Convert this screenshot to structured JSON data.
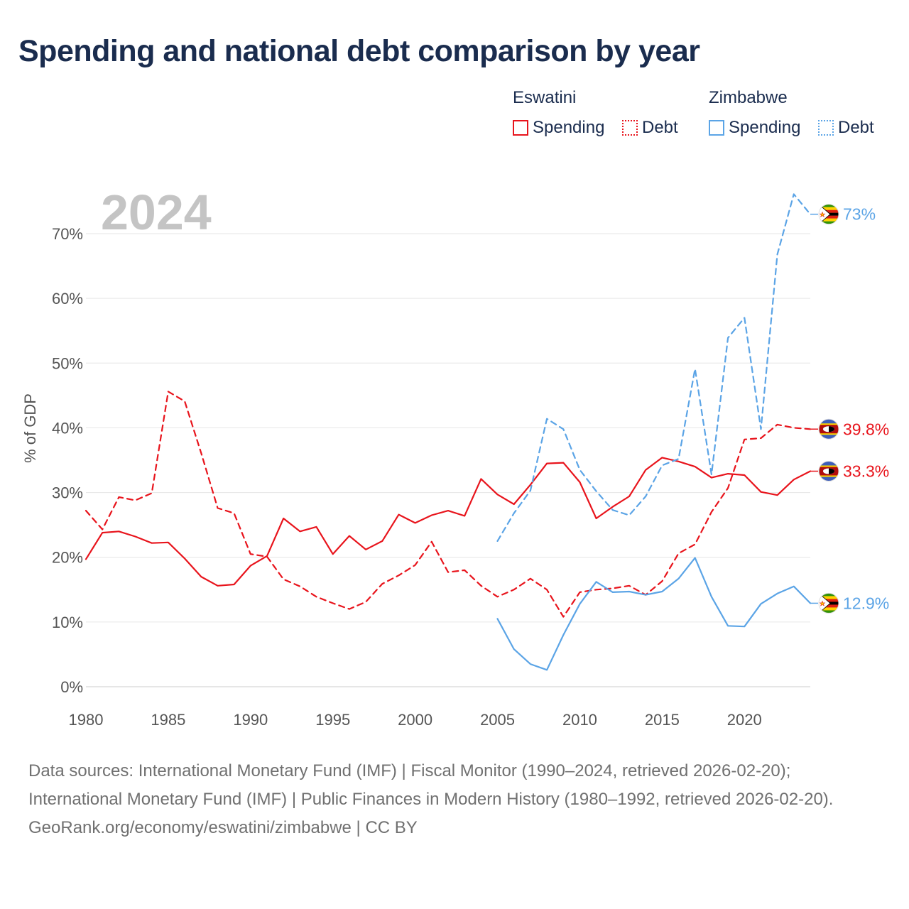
{
  "title": "Spending and national debt comparison by year",
  "legend": {
    "groups": [
      {
        "country": "Eswatini",
        "color": "#e8141c",
        "items": [
          {
            "label": "Spending",
            "style": "solid"
          },
          {
            "label": "Debt",
            "style": "dotted"
          }
        ]
      },
      {
        "country": "Zimbabwe",
        "color": "#5ba4e6",
        "items": [
          {
            "label": "Spending",
            "style": "solid"
          },
          {
            "label": "Debt",
            "style": "dotted"
          }
        ]
      }
    ]
  },
  "chart_data": {
    "type": "line",
    "year_label": "2024",
    "ylabel": "% of GDP",
    "xlim": [
      1980,
      2024
    ],
    "ylim": [
      0,
      70
    ],
    "x_ticks": [
      "1980",
      "1985",
      "1990",
      "1995",
      "2000",
      "2005",
      "2010",
      "2015",
      "2020"
    ],
    "y_ticks": [
      "0%",
      "10%",
      "20%",
      "30%",
      "40%",
      "50%",
      "60%",
      "70%"
    ],
    "series": [
      {
        "name": "Eswatini Spending",
        "country": "Eswatini",
        "kind": "spending",
        "color": "#e8141c",
        "dash": "solid",
        "end_label": "33.3%",
        "x": [
          1980,
          1981,
          1982,
          1983,
          1984,
          1985,
          1986,
          1987,
          1988,
          1989,
          1990,
          1991,
          1992,
          1993,
          1994,
          1995,
          1996,
          1997,
          1998,
          1999,
          2000,
          2001,
          2002,
          2003,
          2004,
          2005,
          2006,
          2007,
          2008,
          2009,
          2010,
          2011,
          2012,
          2013,
          2014,
          2015,
          2016,
          2017,
          2018,
          2019,
          2020,
          2021,
          2022,
          2023,
          2024
        ],
        "values": [
          19.7,
          23.8,
          24.0,
          23.2,
          22.2,
          22.3,
          19.8,
          17.0,
          15.6,
          15.8,
          18.7,
          20.2,
          26.0,
          24.0,
          24.7,
          20.5,
          23.3,
          21.2,
          22.5,
          26.6,
          25.3,
          26.5,
          27.2,
          26.4,
          32.1,
          29.7,
          28.2,
          31.2,
          34.5,
          34.6,
          31.6,
          26.0,
          27.8,
          29.4,
          33.5,
          35.4,
          34.8,
          34.0,
          32.3,
          32.9,
          32.7,
          30.1,
          29.6,
          32.0,
          33.3
        ]
      },
      {
        "name": "Eswatini Debt",
        "country": "Eswatini",
        "kind": "debt",
        "color": "#e8141c",
        "dash": "dashed",
        "end_label": "39.8%",
        "x": [
          1980,
          1981,
          1982,
          1983,
          1984,
          1985,
          1986,
          1987,
          1988,
          1989,
          1990,
          1991,
          1992,
          1993,
          1994,
          1995,
          1996,
          1997,
          1998,
          1999,
          2000,
          2001,
          2002,
          2003,
          2004,
          2005,
          2006,
          2007,
          2008,
          2009,
          2010,
          2011,
          2012,
          2013,
          2014,
          2015,
          2016,
          2017,
          2018,
          2019,
          2020,
          2021,
          2022,
          2023,
          2024
        ],
        "values": [
          27.2,
          24.3,
          29.3,
          28.8,
          29.9,
          45.6,
          44.1,
          36.1,
          27.6,
          26.8,
          20.5,
          20.1,
          16.6,
          15.5,
          13.9,
          12.9,
          12.0,
          13.1,
          15.9,
          17.2,
          18.8,
          22.4,
          17.7,
          18.0,
          15.6,
          13.9,
          15.0,
          16.7,
          15.0,
          10.8,
          14.6,
          15.0,
          15.2,
          15.6,
          14.2,
          16.3,
          20.6,
          22.0,
          27.0,
          30.7,
          38.2,
          38.4,
          40.5,
          40.0,
          39.8
        ]
      },
      {
        "name": "Zimbabwe Spending",
        "country": "Zimbabwe",
        "kind": "spending",
        "color": "#5ba4e6",
        "dash": "solid",
        "end_label": "12.9%",
        "x": [
          2005,
          2006,
          2007,
          2008,
          2009,
          2010,
          2011,
          2012,
          2013,
          2014,
          2015,
          2016,
          2017,
          2018,
          2019,
          2020,
          2021,
          2022,
          2023,
          2024
        ],
        "values": [
          10.5,
          5.8,
          3.5,
          2.6,
          8.0,
          12.8,
          16.2,
          14.6,
          14.7,
          14.2,
          14.7,
          16.7,
          19.9,
          13.9,
          9.4,
          9.3,
          12.8,
          14.4,
          15.5,
          12.9
        ]
      },
      {
        "name": "Zimbabwe Debt",
        "country": "Zimbabwe",
        "kind": "debt",
        "color": "#5ba4e6",
        "dash": "dashed",
        "end_label": "73%",
        "x": [
          2005,
          2006,
          2007,
          2008,
          2009,
          2010,
          2011,
          2012,
          2013,
          2014,
          2015,
          2016,
          2017,
          2018,
          2019,
          2020,
          2021,
          2022,
          2023,
          2024
        ],
        "values": [
          22.5,
          26.8,
          30.3,
          41.4,
          39.8,
          33.5,
          30.2,
          27.3,
          26.5,
          29.4,
          34.2,
          35.2,
          49.1,
          32.8,
          53.9,
          57.0,
          39.8,
          66.8,
          76.1,
          73.0
        ]
      }
    ]
  },
  "footer": {
    "sources": "Data sources: International Monetary Fund (IMF) | Fiscal Monitor (1990–2024, retrieved 2026-02-20); International Monetary Fund (IMF) | Public Finances in Modern History (1980–1992, retrieved 2026-02-20).",
    "credit": "GeoRank.org/economy/eswatini/zimbabwe | CC BY"
  }
}
